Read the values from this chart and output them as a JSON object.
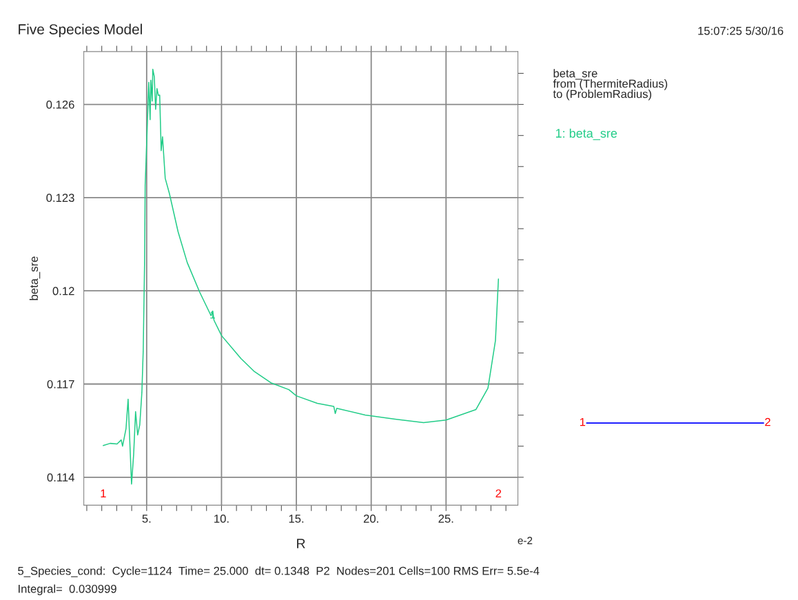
{
  "chart_data": {
    "type": "line",
    "title": "Five Species Model",
    "xlabel": "R",
    "ylabel": "beta_sre",
    "xlim": [
      0.8,
      29.8
    ],
    "ylim": [
      0.1131,
      0.1277
    ],
    "xticks": [
      {
        "value": 1,
        "label": null
      },
      {
        "value": 2,
        "label": null
      },
      {
        "value": 3,
        "label": null
      },
      {
        "value": 4,
        "label": null
      },
      {
        "value": 5,
        "label": "5."
      },
      {
        "value": 6,
        "label": null
      },
      {
        "value": 7,
        "label": null
      },
      {
        "value": 8,
        "label": null
      },
      {
        "value": 9,
        "label": null
      },
      {
        "value": 10,
        "label": "10."
      },
      {
        "value": 11,
        "label": null
      },
      {
        "value": 12,
        "label": null
      },
      {
        "value": 13,
        "label": null
      },
      {
        "value": 14,
        "label": null
      },
      {
        "value": 15,
        "label": "15."
      },
      {
        "value": 16,
        "label": null
      },
      {
        "value": 17,
        "label": null
      },
      {
        "value": 18,
        "label": null
      },
      {
        "value": 19,
        "label": null
      },
      {
        "value": 20,
        "label": "20."
      },
      {
        "value": 21,
        "label": null
      },
      {
        "value": 22,
        "label": null
      },
      {
        "value": 23,
        "label": null
      },
      {
        "value": 24,
        "label": null
      },
      {
        "value": 25,
        "label": "25."
      },
      {
        "value": 26,
        "label": null
      },
      {
        "value": 27,
        "label": null
      },
      {
        "value": 28,
        "label": null
      },
      {
        "value": 29,
        "label": null
      }
    ],
    "yticks": [
      0.114,
      {
        "value": 0.115,
        "label": null
      },
      {
        "value": 0.116,
        "label": null
      },
      0.117,
      {
        "value": 0.118,
        "label": null
      },
      {
        "value": 0.119,
        "label": null
      },
      0.12,
      {
        "value": 0.121,
        "label": null
      },
      {
        "value": 0.122,
        "label": null
      },
      0.123,
      {
        "value": 0.124,
        "label": null
      },
      {
        "value": 0.125,
        "label": null
      },
      0.126,
      {
        "value": 0.127,
        "label": null
      }
    ],
    "grid": true,
    "legend": "top right",
    "marker": "none",
    "line_style": "solid",
    "series": [
      {
        "name": "1: beta_sre",
        "color": "#22cc88",
        "x": [
          2.1,
          2.56,
          3.02,
          3.3,
          3.39,
          3.62,
          3.76,
          3.9,
          3.99,
          4.13,
          4.26,
          4.4,
          4.54,
          4.68,
          4.77,
          4.86,
          4.9,
          5.0,
          5.14,
          5.23,
          5.28,
          5.37,
          5.41,
          5.51,
          5.6,
          5.69,
          5.78,
          5.87,
          5.97,
          6.06,
          6.24,
          6.52,
          7.1,
          7.71,
          8.54,
          9.3,
          9.41,
          9.5,
          10.0,
          11.3,
          12.2,
          13.3,
          14.5,
          15.0,
          16.4,
          17.5,
          17.6,
          17.7,
          19.6,
          21.6,
          23.5,
          25.0,
          27.0,
          27.8,
          28.3,
          28.5
        ],
        "values": [
          0.11502,
          0.11509,
          0.11507,
          0.1152,
          0.115,
          0.11556,
          0.11651,
          0.11484,
          0.11378,
          0.11473,
          0.11611,
          0.11536,
          0.11569,
          0.11673,
          0.11807,
          0.12087,
          0.1234,
          0.12473,
          0.12671,
          0.12551,
          0.12678,
          0.12611,
          0.12713,
          0.12689,
          0.12584,
          0.12651,
          0.12629,
          0.1263,
          0.12451,
          0.12496,
          0.12362,
          0.12313,
          0.1219,
          0.12091,
          0.11996,
          0.1192,
          0.11935,
          0.11905,
          0.11856,
          0.11782,
          0.1174,
          0.11704,
          0.11682,
          0.11662,
          0.11638,
          0.11628,
          0.11605,
          0.11622,
          0.116,
          0.11587,
          0.11576,
          0.11584,
          0.11618,
          0.11687,
          0.1184,
          0.12038
        ]
      }
    ],
    "annotations": [
      "15:07:25 5/30/16",
      "beta_sre\nfrom (ThermiteRadius)\nto (ProblemRadius)",
      "e-2",
      "5_Species_cond:  Cycle=1124  Time= 25.000  dt= 0.1348  P2  Nodes=201 Cells=100 RMS Err= 5.5e-4",
      "Integral=  0.030999",
      "1",
      "2",
      {
        "text": "1",
        "x": 9.4,
        "y": 0.1192
      },
      "1",
      "2"
    ]
  }
}
